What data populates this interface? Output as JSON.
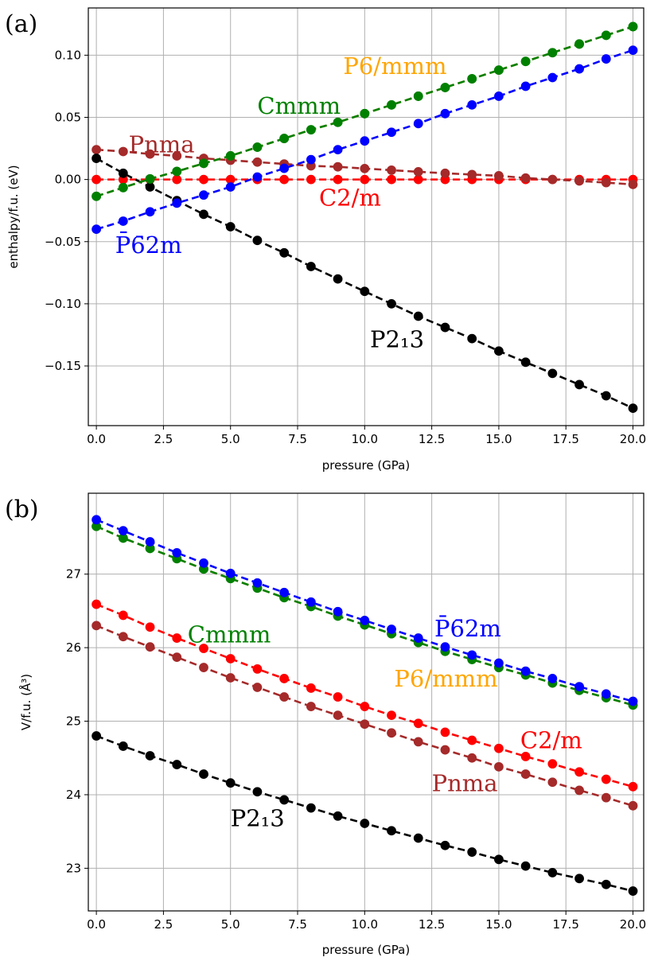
{
  "chart_data": [
    {
      "type": "line",
      "panel_label": "(a)",
      "xlabel": "pressure (GPa)",
      "ylabel": "enthalpy/f.u. (eV)",
      "xlim": [
        -0.3,
        20.4
      ],
      "ylim": [
        -0.198,
        0.138
      ],
      "xticks": [
        0,
        2.5,
        5,
        7.5,
        10,
        12.5,
        15,
        17.5,
        20
      ],
      "xtick_labels": [
        "0.0",
        "2.5",
        "5.0",
        "7.5",
        "10.0",
        "12.5",
        "15.0",
        "17.5",
        "20.0"
      ],
      "yticks": [
        0.1,
        0.05,
        0.0,
        -0.05,
        -0.1,
        -0.15
      ],
      "ytick_labels": [
        "0.10",
        "0.05",
        "0.00",
        "−0.05",
        "−0.10",
        "−0.15"
      ],
      "grid": true,
      "x": [
        0,
        1,
        2,
        3,
        4,
        5,
        6,
        7,
        8,
        9,
        10,
        11,
        12,
        13,
        14,
        15,
        16,
        17,
        18,
        19,
        20
      ],
      "series": [
        {
          "name": "C2/m",
          "color": "#ff0000",
          "marker_edge": "#ff0000",
          "values": [
            0,
            0,
            0,
            0,
            0,
            0,
            0,
            0,
            0,
            0,
            0,
            0,
            0,
            0,
            0,
            0,
            0,
            0,
            0,
            0,
            0
          ]
        },
        {
          "name": "Pnma",
          "color": "#a52a2a",
          "marker_edge": "#a52a2a",
          "values": [
            0.024,
            0.0225,
            0.0205,
            0.019,
            0.017,
            0.0155,
            0.014,
            0.0125,
            0.011,
            0.0102,
            0.0088,
            0.0075,
            0.0062,
            0.005,
            0.004,
            0.003,
            0.0012,
            0.0,
            -0.0012,
            -0.0025,
            -0.004
          ]
        },
        {
          "name": "P2₁3",
          "color": "#000000",
          "marker_edge": "#000000",
          "values": [
            0.017,
            0.005,
            -0.006,
            -0.017,
            -0.028,
            -0.038,
            -0.049,
            -0.059,
            -0.07,
            -0.08,
            -0.09,
            -0.1,
            -0.11,
            -0.119,
            -0.128,
            -0.138,
            -0.147,
            -0.156,
            -0.165,
            -0.174,
            -0.184
          ]
        },
        {
          "name": "P̄6̄2m",
          "color": "#0000ff",
          "marker_edge": "#0000ff",
          "values": [
            -0.04,
            -0.0335,
            -0.026,
            -0.019,
            -0.0125,
            -0.006,
            0.002,
            0.009,
            0.016,
            0.024,
            0.031,
            0.038,
            0.045,
            0.053,
            0.06,
            0.067,
            0.075,
            0.082,
            0.089,
            0.097,
            0.104
          ]
        },
        {
          "name": "P6/mmm",
          "color": "#ffa500",
          "marker_edge": "#008000",
          "values": [
            -0.0135,
            -0.0065,
            0.0005,
            0.0065,
            0.013,
            0.019,
            0.026,
            0.033,
            0.04,
            0.046,
            0.053,
            0.06,
            0.067,
            0.074,
            0.081,
            0.088,
            0.095,
            0.102,
            0.109,
            0.116,
            0.123
          ]
        },
        {
          "name": "Cmmm",
          "color": "#008000",
          "marker_edge": "#008000",
          "values": [
            -0.0135,
            -0.0065,
            0.0005,
            0.0065,
            0.013,
            0.019,
            0.026,
            0.033,
            0.04,
            0.046,
            0.053,
            0.06,
            0.067,
            0.074,
            0.081,
            0.088,
            0.095,
            0.102,
            0.109,
            0.116,
            0.123
          ]
        }
      ],
      "annotations": [
        {
          "text": "P6/mmm",
          "color": "#ffa500",
          "x": 9.2,
          "y": 0.085
        },
        {
          "text": "Cmmm",
          "color": "#008000",
          "x": 6.0,
          "y": 0.053
        },
        {
          "text": "Pnma",
          "color": "#a52a2a",
          "x": 1.2,
          "y": 0.022
        },
        {
          "text": "C2/m",
          "color": "#ff0000",
          "x": 8.3,
          "y": -0.021
        },
        {
          "text": "P̄6̄2m",
          "color": "#0000ff",
          "x": 0.7,
          "y": -0.059
        },
        {
          "text": "P2₁3",
          "color": "#000000",
          "x": 10.2,
          "y": -0.135
        }
      ]
    },
    {
      "type": "line",
      "panel_label": "(b)",
      "xlabel": "pressure (GPa)",
      "ylabel": "V/f.u. (Å³)",
      "xlim": [
        -0.3,
        20.4
      ],
      "ylim": [
        22.42,
        28.1
      ],
      "xticks": [
        0,
        2.5,
        5,
        7.5,
        10,
        12.5,
        15,
        17.5,
        20
      ],
      "xtick_labels": [
        "0.0",
        "2.5",
        "5.0",
        "7.5",
        "10.0",
        "12.5",
        "15.0",
        "17.5",
        "20.0"
      ],
      "yticks": [
        27,
        26,
        25,
        24,
        23
      ],
      "ytick_labels": [
        "27",
        "26",
        "25",
        "24",
        "23"
      ],
      "grid": true,
      "x": [
        0,
        1,
        2,
        3,
        4,
        5,
        6,
        7,
        8,
        9,
        10,
        11,
        12,
        13,
        14,
        15,
        16,
        17,
        18,
        19,
        20
      ],
      "series": [
        {
          "name": "P2₁3",
          "color": "#000000",
          "marker_edge": "#000000",
          "values": [
            24.8,
            24.66,
            24.53,
            24.41,
            24.28,
            24.16,
            24.04,
            23.93,
            23.82,
            23.71,
            23.61,
            23.51,
            23.41,
            23.31,
            23.22,
            23.12,
            23.03,
            22.94,
            22.86,
            22.78,
            22.69
          ]
        },
        {
          "name": "Pnma",
          "color": "#a52a2a",
          "marker_edge": "#a52a2a",
          "values": [
            26.3,
            26.15,
            26.01,
            25.87,
            25.73,
            25.59,
            25.46,
            25.33,
            25.2,
            25.08,
            24.96,
            24.84,
            24.72,
            24.61,
            24.5,
            24.38,
            24.28,
            24.17,
            24.06,
            23.96,
            23.85
          ]
        },
        {
          "name": "C2/m",
          "color": "#ff0000",
          "marker_edge": "#ff0000",
          "values": [
            26.59,
            26.44,
            26.28,
            26.13,
            25.99,
            25.85,
            25.71,
            25.58,
            25.45,
            25.33,
            25.2,
            25.08,
            24.97,
            24.85,
            24.74,
            24.63,
            24.52,
            24.42,
            24.31,
            24.21,
            24.11
          ]
        },
        {
          "name": "P6/mmm",
          "color": "#ffa500",
          "marker_edge": "#008000",
          "values": [
            27.65,
            27.49,
            27.35,
            27.21,
            27.07,
            26.94,
            26.81,
            26.68,
            26.56,
            26.43,
            26.31,
            26.19,
            26.07,
            25.95,
            25.84,
            25.73,
            25.63,
            25.52,
            25.42,
            25.32,
            25.22
          ]
        },
        {
          "name": "Cmmm",
          "color": "#008000",
          "marker_edge": "#008000",
          "values": [
            27.65,
            27.49,
            27.35,
            27.21,
            27.07,
            26.94,
            26.81,
            26.68,
            26.56,
            26.43,
            26.31,
            26.19,
            26.07,
            25.95,
            25.84,
            25.73,
            25.63,
            25.52,
            25.42,
            25.32,
            25.22
          ]
        },
        {
          "name": "P̄6̄2m",
          "color": "#0000ff",
          "marker_edge": "#0000ff",
          "values": [
            27.74,
            27.59,
            27.44,
            27.29,
            27.15,
            27.01,
            26.88,
            26.75,
            26.62,
            26.49,
            26.37,
            26.25,
            26.13,
            26.01,
            25.9,
            25.79,
            25.68,
            25.58,
            25.47,
            25.37,
            25.27
          ]
        }
      ],
      "annotations": [
        {
          "text": "P̄6̄2m",
          "color": "#0000ff",
          "x": 12.6,
          "y": 26.15
        },
        {
          "text": "Cmmm",
          "color": "#008000",
          "x": 3.4,
          "y": 26.07
        },
        {
          "text": "P6/mmm",
          "color": "#ffa500",
          "x": 11.1,
          "y": 25.47
        },
        {
          "text": "C2/m",
          "color": "#ff0000",
          "x": 15.8,
          "y": 24.63
        },
        {
          "text": "Pnma",
          "color": "#a52a2a",
          "x": 12.5,
          "y": 24.05
        },
        {
          "text": "P2₁3",
          "color": "#000000",
          "x": 5.0,
          "y": 23.57
        }
      ]
    }
  ]
}
